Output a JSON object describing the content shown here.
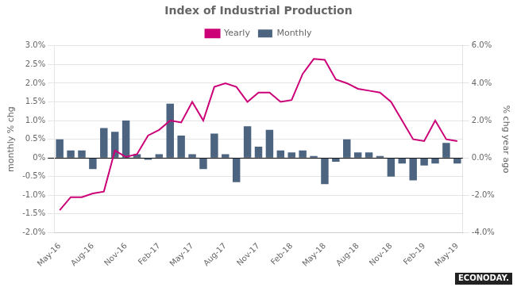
{
  "chart_data": {
    "type": "bar",
    "title": "Index of Industrial Production",
    "categories": [
      "May-16",
      null,
      null,
      "Aug-16",
      null,
      null,
      "Nov-16",
      null,
      null,
      "Feb-17",
      null,
      null,
      "May-17",
      null,
      null,
      "Aug-17",
      null,
      null,
      "Nov-17",
      null,
      null,
      "Feb-18",
      null,
      null,
      "May-18",
      null,
      null,
      "Aug-18",
      null,
      null,
      "Nov-18",
      null,
      null,
      "Feb-19",
      null,
      null,
      "May-19"
    ],
    "series": [
      {
        "name": "Monthly",
        "type": "bar",
        "color": "#4d6480",
        "values": [
          0.5,
          0.2,
          0.2,
          -0.3,
          0.8,
          0.7,
          1.0,
          0.1,
          -0.05,
          0.1,
          1.45,
          0.6,
          0.1,
          -0.3,
          0.65,
          0.1,
          -0.65,
          0.85,
          0.3,
          0.75,
          0.2,
          0.15,
          0.2,
          0.05,
          -0.7,
          -0.1,
          0.5,
          0.15,
          0.15,
          0.05,
          -0.5,
          -0.15,
          -0.6,
          -0.2,
          -0.15,
          0.4,
          -0.15
        ]
      },
      {
        "name": "Yearly",
        "type": "line",
        "color": "#cc0077",
        "axis": "y2",
        "values": [
          -2.8,
          -2.1,
          -2.1,
          -1.9,
          -1.8,
          0.4,
          0.05,
          0.2,
          1.2,
          1.5,
          2.0,
          1.9,
          3.0,
          2.0,
          3.8,
          4.0,
          3.8,
          3.0,
          3.5,
          3.5,
          3.0,
          3.1,
          4.5,
          5.3,
          5.25,
          4.2,
          4.0,
          3.7,
          3.6,
          3.5,
          3.0,
          2.0,
          1.0,
          0.9,
          2.0,
          1.0,
          0.9
        ]
      }
    ],
    "ylabel": "monthly % chg",
    "y2label": "% chg year ago",
    "ylim": [
      -2.0,
      3.0
    ],
    "yticks": [
      {
        "value": -2.0,
        "label": "-2.0%"
      },
      {
        "value": -1.5,
        "label": "-1.5%"
      },
      {
        "value": -1.0,
        "label": "-1.0%"
      },
      {
        "value": -0.5,
        "label": "-0.5%"
      },
      {
        "value": 0.0,
        "label": "0%"
      },
      {
        "value": 0.5,
        "label": "0.5%"
      },
      {
        "value": 1.0,
        "label": "1.0%"
      },
      {
        "value": 1.5,
        "label": "1.5%"
      },
      {
        "value": 2.0,
        "label": "2.0%"
      },
      {
        "value": 2.5,
        "label": "2.5%"
      },
      {
        "value": 3.0,
        "label": "3.0%"
      }
    ],
    "y2lim": [
      -4.0,
      6.0
    ],
    "y2ticks": [
      {
        "value": -4.0,
        "label": "-4.0%"
      },
      {
        "value": -2.0,
        "label": "-2.0%"
      },
      {
        "value": 0.0,
        "label": "0.0%"
      },
      {
        "value": 2.0,
        "label": "2.0%"
      },
      {
        "value": 4.0,
        "label": "4.0%"
      },
      {
        "value": 6.0,
        "label": "6.0%"
      }
    ],
    "grid": true,
    "legend": "upper center",
    "annotation": "ECONODAY."
  }
}
